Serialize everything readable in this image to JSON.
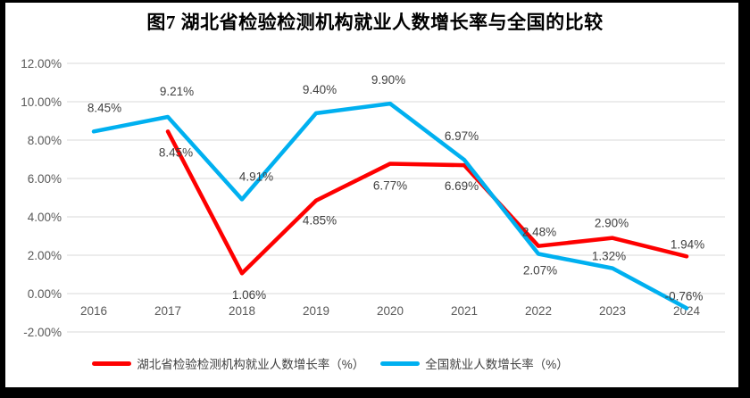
{
  "title": "图7 湖北省检验检测机构就业人数增长率与全国的比较",
  "chart_data": {
    "type": "line",
    "title": "图7 湖北省检验检测机构就业人数增长率与全国的比较",
    "categories": [
      "2016",
      "2017",
      "2018",
      "2019",
      "2020",
      "2021",
      "2022",
      "2023",
      "2024"
    ],
    "series": [
      {
        "name": "湖北省检验检测机构就业人数增长率（%）",
        "color": "#FE0000",
        "values": [
          null,
          8.45,
          1.06,
          4.85,
          6.77,
          6.69,
          2.48,
          2.9,
          1.94
        ],
        "point_labels": [
          "",
          "8.45%",
          "1.06%",
          "4.85%",
          "6.77%",
          "6.69%",
          "2.48%",
          "2.90%",
          "1.94%"
        ]
      },
      {
        "name": "全国就业人数增长率（%）",
        "color": "#00B0F0",
        "values": [
          8.45,
          9.21,
          4.91,
          9.4,
          9.9,
          6.97,
          2.07,
          1.32,
          -0.76
        ],
        "point_labels": [
          "8.45%",
          "9.21%",
          "4.91%",
          "9.40%",
          "9.90%",
          "6.97%",
          "2.07%",
          "1.32%",
          "-0.76%"
        ]
      }
    ],
    "y_axis": {
      "min": -2,
      "max": 12,
      "step": 2,
      "tick_labels": [
        "-2.00%",
        "0.00%",
        "2.00%",
        "4.00%",
        "6.00%",
        "8.00%",
        "10.00%",
        "12.00%"
      ]
    },
    "x_axis": {
      "label_position": "next_to_zero_axis"
    },
    "grid": true,
    "legend_position": "bottom",
    "styles": {
      "grid_color": "#D9D9D9",
      "axis_text_color": "#595959",
      "label_text_color": "#404040",
      "frame_color": "#000000",
      "background": "#FFFFFF"
    }
  }
}
